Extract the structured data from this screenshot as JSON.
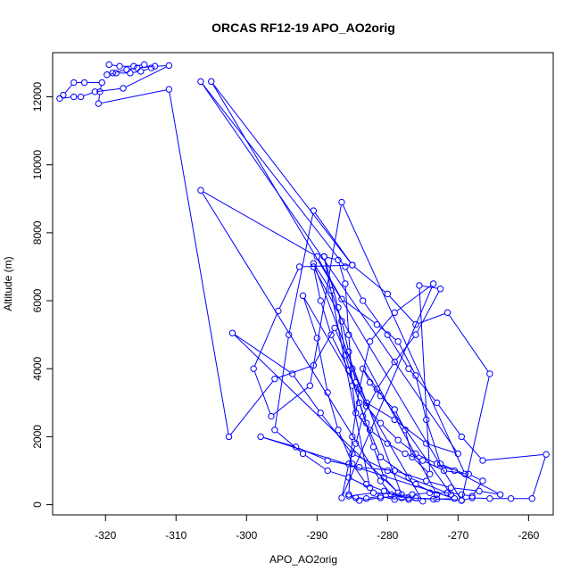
{
  "chart_data": {
    "type": "line",
    "title": "ORCAS RF12-19 APO_AO2orig",
    "xlabel": "APO_AO2orig",
    "ylabel": "Altitude (m)",
    "xlim": [
      -327.5,
      -256.5
    ],
    "ylim": [
      -300,
      13300
    ],
    "xticks": [
      -320,
      -310,
      -300,
      -290,
      -280,
      -270,
      -260
    ],
    "yticks": [
      0,
      2000,
      4000,
      6000,
      8000,
      10000,
      12000
    ],
    "grid": false,
    "legend": "none",
    "series": [
      {
        "color": "#0000ff",
        "marker": "open-circle",
        "style": "line-with-points",
        "points": [
          [
            -319.5,
            12950
          ],
          [
            -318.0,
            12900
          ],
          [
            -316.0,
            12900
          ],
          [
            -314.5,
            12950
          ],
          [
            -313.5,
            12850
          ],
          [
            -315.0,
            12750
          ],
          [
            -316.5,
            12700
          ],
          [
            -318.5,
            12700
          ],
          [
            -319.8,
            12650
          ],
          [
            -319.0,
            12700
          ],
          [
            -317.0,
            12800
          ],
          [
            -315.5,
            12850
          ],
          [
            -313.0,
            12900
          ],
          [
            -311.0,
            12920
          ],
          [
            -317.5,
            12250
          ],
          [
            -321.5,
            12150
          ],
          [
            -323.5,
            12000
          ],
          [
            -324.5,
            12000
          ],
          [
            -326.5,
            11950
          ],
          [
            -326.0,
            12050
          ],
          [
            -324.5,
            12420
          ],
          [
            -323.0,
            12420
          ],
          [
            -320.5,
            12420
          ],
          [
            -320.8,
            12150
          ],
          [
            -321.0,
            11800
          ],
          [
            -311.0,
            12220
          ],
          [
            -302.5,
            2000
          ],
          [
            -296.0,
            3700
          ],
          [
            -290.5,
            4100
          ],
          [
            -287.5,
            5200
          ],
          [
            -285.0,
            4000
          ],
          [
            -283.0,
            3000
          ],
          [
            -279.0,
            2500
          ],
          [
            -274.5,
            1800
          ],
          [
            -270.0,
            1500
          ],
          [
            -306.5,
            12450
          ],
          [
            -286.0,
            7000
          ],
          [
            -283.5,
            6000
          ],
          [
            -280.0,
            5000
          ],
          [
            -277.0,
            4000
          ],
          [
            -273.0,
            3000
          ],
          [
            -269.5,
            2000
          ],
          [
            -266.5,
            1300
          ],
          [
            -257.5,
            1480
          ],
          [
            -259.5,
            180
          ],
          [
            -262.5,
            180
          ],
          [
            -265.5,
            180
          ],
          [
            -268.0,
            200
          ],
          [
            -269.5,
            120
          ],
          [
            -305.0,
            12450
          ],
          [
            -285.0,
            7050
          ],
          [
            -280.0,
            6200
          ],
          [
            -276.0,
            5300
          ],
          [
            -271.5,
            5650
          ],
          [
            -265.5,
            3850
          ],
          [
            -269.5,
            130
          ],
          [
            -273.0,
            170
          ],
          [
            -277.0,
            200
          ],
          [
            -279.5,
            300
          ],
          [
            -281.0,
            700
          ],
          [
            -306.5,
            9250
          ],
          [
            -290.0,
            7300
          ],
          [
            -286.5,
            6050
          ],
          [
            -281.5,
            5300
          ],
          [
            -278.5,
            4800
          ],
          [
            -276.0,
            3800
          ],
          [
            -274.5,
            2500
          ],
          [
            -272.5,
            1200
          ],
          [
            -269.0,
            900
          ],
          [
            -286.5,
            8900
          ],
          [
            -291.0,
            3500
          ],
          [
            -296.5,
            2600
          ],
          [
            -299.0,
            4000
          ],
          [
            -295.5,
            5700
          ],
          [
            -292.5,
            7000
          ],
          [
            -285.0,
            7050
          ],
          [
            -290.5,
            8650
          ],
          [
            -294.0,
            5000
          ],
          [
            -296.0,
            2200
          ],
          [
            -292.0,
            1500
          ],
          [
            -288.5,
            1000
          ],
          [
            -285.5,
            800
          ],
          [
            -282.5,
            500
          ],
          [
            -289.0,
            7300
          ],
          [
            -287.0,
            5800
          ],
          [
            -286.0,
            4400
          ],
          [
            -284.0,
            3000
          ],
          [
            -282.0,
            1700
          ],
          [
            -280.5,
            800
          ],
          [
            -278.5,
            350
          ],
          [
            -302.0,
            5050
          ],
          [
            -293.5,
            3850
          ],
          [
            -289.5,
            2700
          ],
          [
            -285.0,
            1500
          ],
          [
            -280.0,
            1000
          ],
          [
            -276.0,
            600
          ],
          [
            -273.0,
            300
          ],
          [
            -290.5,
            7000
          ],
          [
            -289.5,
            6000
          ],
          [
            -288.0,
            5000
          ],
          [
            -285.5,
            3950
          ],
          [
            -283.0,
            2400
          ],
          [
            -281.0,
            1400
          ],
          [
            -277.0,
            800
          ],
          [
            -271.0,
            300
          ],
          [
            -283.5,
            4000
          ],
          [
            -282.5,
            3600
          ],
          [
            -281.0,
            3200
          ],
          [
            -279.0,
            2800
          ],
          [
            -277.5,
            2200
          ],
          [
            -276.5,
            1400
          ],
          [
            -274.0,
            900
          ],
          [
            -275.5,
            6450
          ],
          [
            -272.5,
            6350
          ],
          [
            -276.0,
            5000
          ],
          [
            -279.0,
            4200
          ],
          [
            -281.5,
            3400
          ],
          [
            -283.5,
            2600
          ],
          [
            -284.5,
            1800
          ],
          [
            -285.5,
            1200
          ],
          [
            -286.5,
            200
          ],
          [
            -273.5,
            6500
          ],
          [
            -279.0,
            5650
          ],
          [
            -282.5,
            4800
          ],
          [
            -284.0,
            3400
          ],
          [
            -285.0,
            2000
          ],
          [
            -285.5,
            300
          ],
          [
            -284.5,
            200
          ],
          [
            -283.0,
            180
          ],
          [
            -281.0,
            250
          ],
          [
            -279.0,
            150
          ],
          [
            -277.0,
            150
          ],
          [
            -275.0,
            100
          ],
          [
            -292.0,
            6150
          ],
          [
            -290.0,
            4900
          ],
          [
            -288.5,
            3300
          ],
          [
            -287.0,
            2200
          ],
          [
            -285.0,
            1200
          ],
          [
            -283.0,
            600
          ],
          [
            -280.5,
            400
          ],
          [
            -278.0,
            200
          ],
          [
            -276.0,
            200
          ],
          [
            -273.5,
            160
          ],
          [
            -270.5,
            180
          ],
          [
            -298.0,
            2000
          ],
          [
            -293.0,
            1700
          ],
          [
            -288.5,
            1300
          ],
          [
            -284.0,
            1100
          ],
          [
            -279.0,
            1000
          ],
          [
            -274.5,
            700
          ],
          [
            -271.0,
            500
          ],
          [
            -267.0,
            400
          ],
          [
            -264.0,
            300
          ],
          [
            -270.5,
            1000
          ],
          [
            -273.0,
            1200
          ],
          [
            -276.0,
            1500
          ],
          [
            -278.5,
            1900
          ],
          [
            -281.0,
            2400
          ],
          [
            -283.0,
            2900
          ],
          [
            -284.5,
            3600
          ],
          [
            -285.5,
            4500
          ],
          [
            -286.5,
            5400
          ],
          [
            -288.0,
            6300
          ],
          [
            -290.5,
            7100
          ],
          [
            -278.0,
            300
          ],
          [
            -282.0,
            350
          ],
          [
            -285.5,
            250
          ],
          [
            -284.0,
            120
          ],
          [
            -281.0,
            200
          ],
          [
            -279.0,
            250
          ],
          [
            -276.5,
            300
          ],
          [
            -274.0,
            350
          ],
          [
            -271.5,
            350
          ],
          [
            -269.5,
            300
          ],
          [
            -268.0,
            250
          ],
          [
            -266.5,
            700
          ],
          [
            -268.5,
            900
          ],
          [
            -272.0,
            1000
          ],
          [
            -275.0,
            1300
          ],
          [
            -277.5,
            1500
          ],
          [
            -280.0,
            1800
          ],
          [
            -282.5,
            2200
          ],
          [
            -284.5,
            2700
          ],
          [
            -285.0,
            3500
          ],
          [
            -285.5,
            5000
          ],
          [
            -286.0,
            6500
          ],
          [
            -287.0,
            7200
          ],
          [
            -289.0,
            7300
          ]
        ]
      }
    ]
  }
}
